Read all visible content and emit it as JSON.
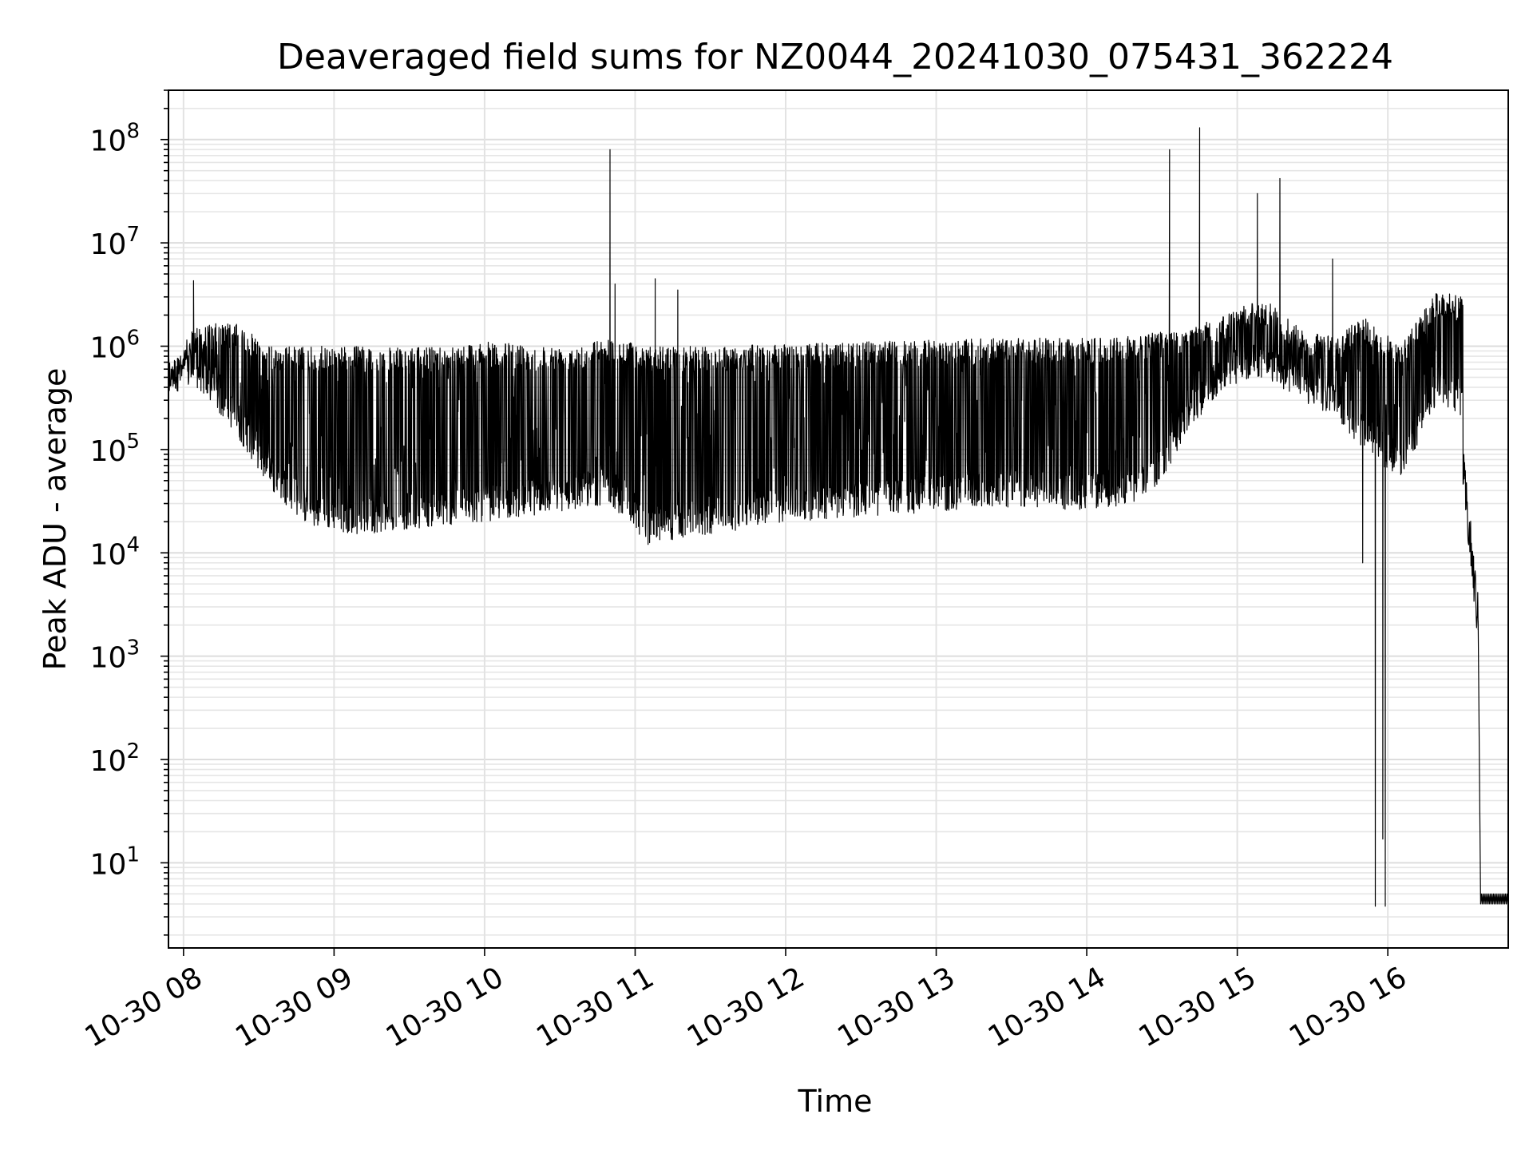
{
  "chart_data": {
    "type": "line",
    "title": "Deaveraged field sums for NZ0044_20241030_075431_362224",
    "xlabel": "Time",
    "ylabel": "Peak ADU - average",
    "y_scale": "log",
    "grid": true,
    "x_start": "10-30 07:54",
    "x_end": "10-30 16:48",
    "ylim": [
      1.5,
      300000000
    ],
    "x_ticks": [
      "10-30 08",
      "10-30 09",
      "10-30 10",
      "10-30 11",
      "10-30 12",
      "10-30 13",
      "10-30 14",
      "10-30 15",
      "10-30 16"
    ],
    "y_ticks": [
      {
        "base": "10",
        "exp": "1"
      },
      {
        "base": "10",
        "exp": "2"
      },
      {
        "base": "10",
        "exp": "3"
      },
      {
        "base": "10",
        "exp": "4"
      },
      {
        "base": "10",
        "exp": "5"
      },
      {
        "base": "10",
        "exp": "6"
      },
      {
        "base": "10",
        "exp": "7"
      },
      {
        "base": "10",
        "exp": "8"
      }
    ],
    "series": [
      {
        "color": "#000000",
        "style": "dense high-frequency oscillation between envelope_low and envelope_high",
        "envelope_low": {
          "x": [
            "10-30 07:54",
            "10-30 08:05",
            "10-30 08:20",
            "10-30 08:35",
            "10-30 08:50",
            "10-30 09:10",
            "10-30 09:30",
            "10-30 10:00",
            "10-30 10:30",
            "10-30 10:50",
            "10-30 11:05",
            "10-30 11:30",
            "10-30 12:00",
            "10-30 12:30",
            "10-30 13:00",
            "10-30 13:30",
            "10-30 14:00",
            "10-30 14:20",
            "10-30 14:30",
            "10-30 14:40",
            "10-30 14:55",
            "10-30 15:10",
            "10-30 15:25",
            "10-30 15:40",
            "10-30 15:50",
            "10-30 16:05",
            "10-30 16:20",
            "10-30 16:30",
            "10-30 16:36"
          ],
          "y": [
            350000,
            400000,
            150000,
            40000,
            18000,
            15000,
            17000,
            20000,
            25000,
            30000,
            12000,
            15000,
            20000,
            22000,
            25000,
            27000,
            26000,
            30000,
            50000,
            150000,
            400000,
            500000,
            300000,
            200000,
            100000,
            50000,
            300000,
            200000,
            2000
          ]
        },
        "envelope_high": {
          "x": [
            "10-30 07:54",
            "10-30 08:05",
            "10-30 08:20",
            "10-30 08:35",
            "10-30 08:50",
            "10-30 09:10",
            "10-30 09:30",
            "10-30 10:00",
            "10-30 10:30",
            "10-30 10:50",
            "10-30 11:05",
            "10-30 11:30",
            "10-30 12:00",
            "10-30 12:30",
            "10-30 13:00",
            "10-30 13:30",
            "10-30 14:00",
            "10-30 14:20",
            "10-30 14:30",
            "10-30 14:40",
            "10-30 14:55",
            "10-30 15:10",
            "10-30 15:25",
            "10-30 15:40",
            "10-30 15:50",
            "10-30 16:05",
            "10-30 16:20",
            "10-30 16:30",
            "10-30 16:36"
          ],
          "y": [
            600000,
            1600000,
            1700000,
            1000000,
            1000000,
            1000000,
            950000,
            1100000,
            1000000,
            1200000,
            1000000,
            1000000,
            1050000,
            1100000,
            1150000,
            1200000,
            1200000,
            1300000,
            1400000,
            1500000,
            2000000,
            3000000,
            1500000,
            1200000,
            2000000,
            1000000,
            3500000,
            3000000,
            2000
          ]
        },
        "spikes": {
          "x": [
            "10-30 08:04",
            "10-30 10:50",
            "10-30 10:52",
            "10-30 11:08",
            "10-30 11:17",
            "10-30 14:33",
            "10-30 14:45",
            "10-30 15:08",
            "10-30 15:17",
            "10-30 15:38"
          ],
          "y": [
            4300000,
            80000000,
            4000000,
            4500000,
            3500000,
            80000000,
            130000000,
            30000000,
            42000000,
            7000000
          ]
        },
        "dips": {
          "x": [
            "10-30 15:50",
            "10-30 15:55",
            "10-30 15:58",
            "10-30 15:59"
          ],
          "y": [
            8000,
            3.8,
            17,
            3.8
          ]
        },
        "tail": {
          "x": [
            "10-30 16:30",
            "10-30 16:36",
            "10-30 16:37",
            "10-30 16:48"
          ],
          "y": [
            60000,
            2200,
            4.0,
            4.0
          ]
        }
      }
    ]
  }
}
